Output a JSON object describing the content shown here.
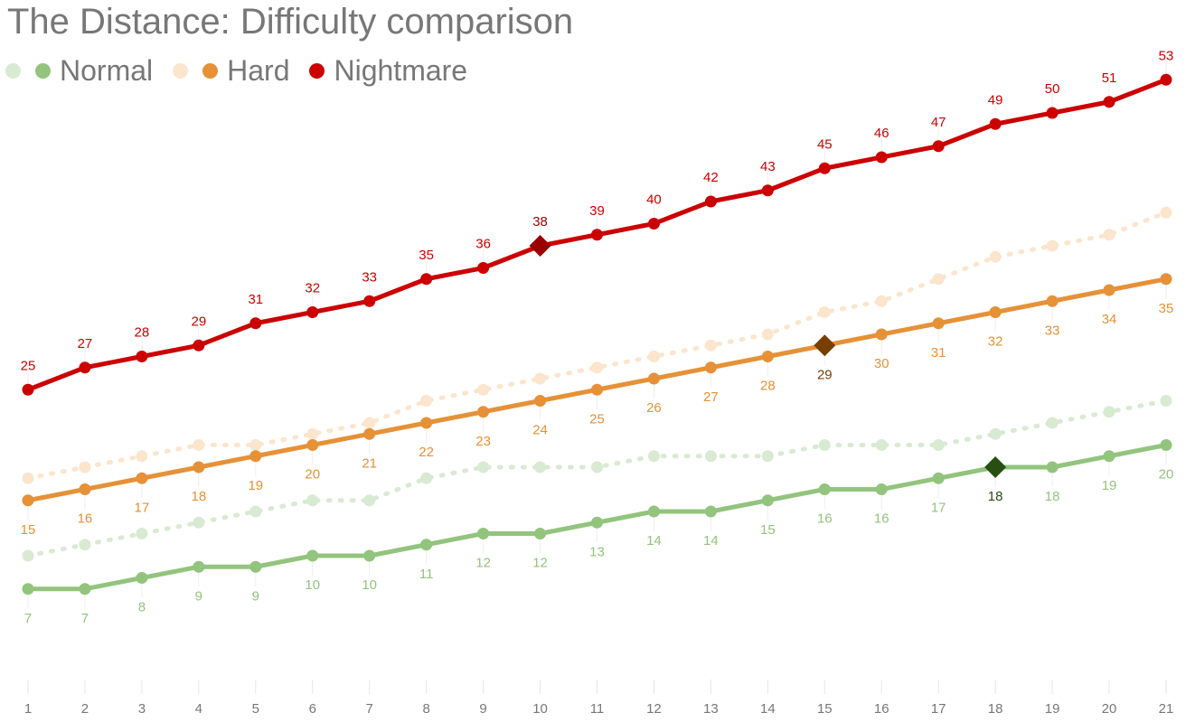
{
  "chart_data": {
    "type": "line",
    "title": "The Distance: Difficulty comparison",
    "xlabel": "",
    "ylabel": "",
    "x": [
      1,
      2,
      3,
      4,
      5,
      6,
      7,
      8,
      9,
      10,
      11,
      12,
      13,
      14,
      15,
      16,
      17,
      18,
      19,
      20,
      21
    ],
    "ylim": [
      0,
      56
    ],
    "grid": false,
    "legend_position": "top-left",
    "series": [
      {
        "name": "Normal",
        "color": "#93c47d",
        "ghost_color": "#d9ead3",
        "label_position": "below",
        "highlight_color": "#274e13",
        "highlight_index": 17,
        "values": [
          7,
          7,
          8,
          9,
          9,
          10,
          10,
          11,
          12,
          12,
          13,
          14,
          14,
          15,
          16,
          16,
          17,
          18,
          18,
          19,
          20
        ],
        "ghost_values": [
          10,
          11,
          12,
          13,
          14,
          15,
          15,
          17,
          18,
          18,
          18,
          19,
          19,
          19,
          20,
          20,
          20,
          21,
          22,
          23,
          24
        ]
      },
      {
        "name": "Hard",
        "color": "#e69138",
        "ghost_color": "#fce5cd",
        "label_position": "below",
        "highlight_color": "#783f04",
        "highlight_index": 14,
        "values": [
          15,
          16,
          17,
          18,
          19,
          20,
          21,
          22,
          23,
          24,
          25,
          26,
          27,
          28,
          29,
          30,
          31,
          32,
          33,
          34,
          35
        ],
        "ghost_values": [
          17,
          18,
          19,
          20,
          20,
          21,
          22,
          24,
          25,
          26,
          27,
          28,
          29,
          30,
          32,
          33,
          35,
          37,
          38,
          39,
          41
        ]
      },
      {
        "name": "Nightmare",
        "color": "#cc0000",
        "label_position": "above",
        "highlight_color": "#990000",
        "highlight_index": 9,
        "values": [
          25,
          27,
          28,
          29,
          31,
          32,
          33,
          35,
          36,
          38,
          39,
          40,
          42,
          43,
          45,
          46,
          47,
          49,
          50,
          51,
          53
        ]
      }
    ]
  }
}
